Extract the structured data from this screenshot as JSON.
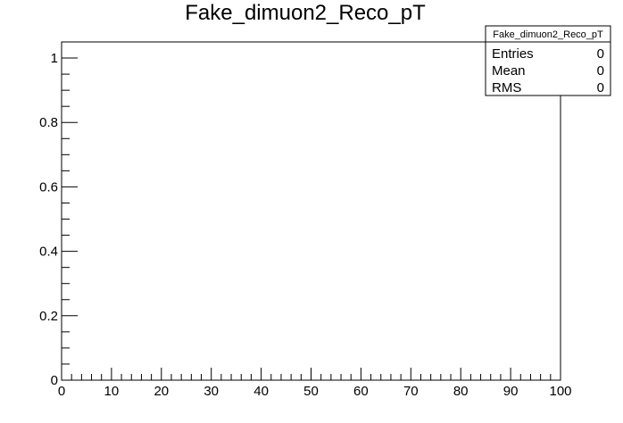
{
  "chart_data": {
    "type": "bar",
    "title": "Fake_dimuon2_Reco_pT",
    "xlabel": "",
    "ylabel": "",
    "xlim": [
      0,
      100
    ],
    "ylim": [
      0,
      1.05
    ],
    "x_ticks": [
      0,
      10,
      20,
      30,
      40,
      50,
      60,
      70,
      80,
      90,
      100
    ],
    "x_tick_labels": [
      "0",
      "10",
      "20",
      "30",
      "40",
      "50",
      "60",
      "70",
      "80",
      "90",
      "100"
    ],
    "y_ticks": [
      0,
      0.2,
      0.4,
      0.6,
      0.8,
      1
    ],
    "y_tick_labels": [
      "0",
      "0.2",
      "0.4",
      "0.6",
      "0.8",
      "1"
    ],
    "grid": false,
    "values": [],
    "stats_box": {
      "name": "Fake_dimuon2_Reco_pT",
      "rows": [
        {
          "label": "Entries",
          "value": "0"
        },
        {
          "label": "Mean",
          "value": "0"
        },
        {
          "label": "RMS",
          "value": "0"
        }
      ],
      "placement": "top-right"
    }
  }
}
